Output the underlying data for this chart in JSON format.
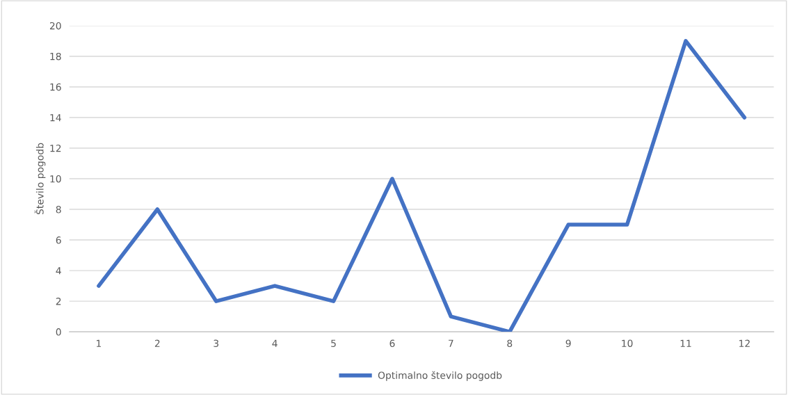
{
  "chart_data": {
    "type": "line",
    "ylabel": "Število pogodb",
    "categories": [
      "1",
      "2",
      "3",
      "4",
      "5",
      "6",
      "7",
      "8",
      "9",
      "10",
      "11",
      "12"
    ],
    "series": [
      {
        "name": "Optimalno število pogodb",
        "color": "#4472c4",
        "values": [
          3,
          8,
          2,
          3,
          2,
          10,
          1,
          0,
          7,
          7,
          19,
          14
        ]
      }
    ],
    "ylim": [
      0,
      20
    ],
    "yticks": [
      0,
      2,
      4,
      6,
      8,
      10,
      12,
      14,
      16,
      18,
      20
    ],
    "grid": "y",
    "legend": "bottom",
    "marker": "none",
    "line_style": "solid"
  }
}
